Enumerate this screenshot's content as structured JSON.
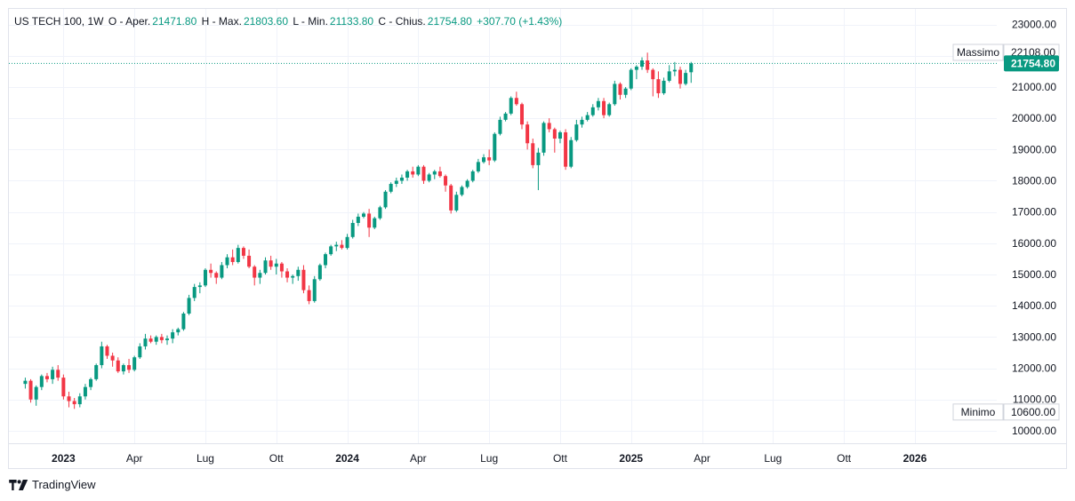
{
  "legend": {
    "symbol": "US TECH 100, 1W",
    "open_label": "O - Aper.",
    "open": "21471.80",
    "high_label": "H - Max.",
    "high": "21803.60",
    "low_label": "L - Min.",
    "low": "21133.80",
    "close_label": "C - Chius.",
    "close": "21754.80",
    "change": "+307.70 (+1.43%)"
  },
  "brand": {
    "name": "TradingView",
    "logo_icon": "tradingview-logo-icon"
  },
  "colors": {
    "up": "#089981",
    "down": "#f23645",
    "price_line": "#089981",
    "grid": "#f0f3fa"
  },
  "chart_data": {
    "type": "candlestick",
    "title": "US TECH 100, 1W",
    "y_ticks": [
      "23000.00",
      "22000.00",
      "21000.00",
      "20000.00",
      "19000.00",
      "18000.00",
      "17000.00",
      "16000.00",
      "15000.00",
      "14000.00",
      "13000.00",
      "12000.00",
      "11000.00",
      "10000.00"
    ],
    "x_ticks": [
      {
        "label": "2023",
        "week": 7,
        "bold": true
      },
      {
        "label": "Apr",
        "week": 20,
        "bold": false
      },
      {
        "label": "Lug",
        "week": 33,
        "bold": false
      },
      {
        "label": "Ott",
        "week": 46,
        "bold": false
      },
      {
        "label": "2024",
        "week": 59,
        "bold": true
      },
      {
        "label": "Apr",
        "week": 72,
        "bold": false
      },
      {
        "label": "Lug",
        "week": 85,
        "bold": false
      },
      {
        "label": "Ott",
        "week": 98,
        "bold": false
      },
      {
        "label": "2025",
        "week": 111,
        "bold": true
      },
      {
        "label": "Apr",
        "week": 124,
        "bold": false
      },
      {
        "label": "Lug",
        "week": 137,
        "bold": false
      },
      {
        "label": "Ott",
        "week": 150,
        "bold": false
      },
      {
        "label": "2026",
        "week": 163,
        "bold": true
      }
    ],
    "y_range": [
      9600,
      23500
    ],
    "x_range_weeks": [
      -3,
      178
    ],
    "ohlc": [
      [
        11500,
        11700,
        11350,
        11600
      ],
      [
        11600,
        11650,
        10900,
        11000
      ],
      [
        11000,
        11450,
        10800,
        11400
      ],
      [
        11400,
        11800,
        11300,
        11750
      ],
      [
        11750,
        11850,
        11550,
        11650
      ],
      [
        11650,
        12050,
        11500,
        11950
      ],
      [
        11950,
        12100,
        11600,
        11700
      ],
      [
        11700,
        11800,
        11000,
        11100
      ],
      [
        11100,
        11250,
        10750,
        10950
      ],
      [
        10950,
        11050,
        10700,
        10850
      ],
      [
        10850,
        11200,
        10750,
        11100
      ],
      [
        11100,
        11500,
        11000,
        11400
      ],
      [
        11400,
        11700,
        11300,
        11650
      ],
      [
        11650,
        12150,
        11600,
        12100
      ],
      [
        12100,
        12850,
        12000,
        12700
      ],
      [
        12700,
        12750,
        12300,
        12400
      ],
      [
        12400,
        12500,
        12050,
        12250
      ],
      [
        12250,
        12350,
        11850,
        11900
      ],
      [
        11900,
        12150,
        11800,
        12100
      ],
      [
        12100,
        12300,
        11850,
        11950
      ],
      [
        11950,
        12400,
        11900,
        12350
      ],
      [
        12350,
        12800,
        12300,
        12700
      ],
      [
        12700,
        13100,
        12600,
        12950
      ],
      [
        12950,
        13050,
        12800,
        12850
      ],
      [
        12850,
        13050,
        12750,
        13000
      ],
      [
        13000,
        13100,
        12800,
        12900
      ],
      [
        12900,
        13050,
        12750,
        12950
      ],
      [
        12950,
        13250,
        12800,
        13150
      ],
      [
        13150,
        13300,
        13050,
        13250
      ],
      [
        13250,
        13800,
        13200,
        13750
      ],
      [
        13750,
        14350,
        13700,
        14250
      ],
      [
        14250,
        14700,
        14150,
        14600
      ],
      [
        14600,
        14750,
        14400,
        14650
      ],
      [
        14650,
        15200,
        14600,
        15150
      ],
      [
        15150,
        15350,
        14900,
        15050
      ],
      [
        15050,
        15100,
        14700,
        14900
      ],
      [
        14900,
        15400,
        14850,
        15300
      ],
      [
        15300,
        15650,
        15200,
        15550
      ],
      [
        15550,
        15800,
        15300,
        15400
      ],
      [
        15400,
        15950,
        15350,
        15850
      ],
      [
        15850,
        15900,
        15500,
        15600
      ],
      [
        15600,
        15800,
        15200,
        15250
      ],
      [
        15250,
        15300,
        14650,
        14900
      ],
      [
        14900,
        15150,
        14700,
        15050
      ],
      [
        15050,
        15550,
        15000,
        15450
      ],
      [
        15450,
        15600,
        15150,
        15250
      ],
      [
        15250,
        15500,
        15000,
        15350
      ],
      [
        15350,
        15400,
        14900,
        15100
      ],
      [
        15100,
        15200,
        14750,
        14900
      ],
      [
        14900,
        15000,
        14700,
        14950
      ],
      [
        14950,
        15250,
        14800,
        15150
      ],
      [
        15150,
        15300,
        14400,
        14500
      ],
      [
        14500,
        14650,
        14050,
        14150
      ],
      [
        14150,
        14950,
        14100,
        14850
      ],
      [
        14850,
        15350,
        14800,
        15300
      ],
      [
        15300,
        15700,
        15200,
        15650
      ],
      [
        15650,
        15950,
        15600,
        15900
      ],
      [
        15900,
        16050,
        15750,
        15950
      ],
      [
        15950,
        16100,
        15800,
        15850
      ],
      [
        15850,
        16300,
        15800,
        16200
      ],
      [
        16200,
        16750,
        16150,
        16650
      ],
      [
        16650,
        16950,
        16550,
        16850
      ],
      [
        16850,
        17000,
        16800,
        16950
      ],
      [
        16950,
        17100,
        16200,
        16500
      ],
      [
        16500,
        16850,
        16450,
        16800
      ],
      [
        16800,
        17200,
        16750,
        17150
      ],
      [
        17150,
        17700,
        17100,
        17650
      ],
      [
        17650,
        17950,
        17600,
        17900
      ],
      [
        17900,
        18100,
        17800,
        18000
      ],
      [
        18000,
        18200,
        17900,
        18100
      ],
      [
        18100,
        18350,
        18000,
        18300
      ],
      [
        18300,
        18450,
        18100,
        18200
      ],
      [
        18200,
        18500,
        18150,
        18450
      ],
      [
        18450,
        18500,
        17900,
        18000
      ],
      [
        18000,
        18250,
        17950,
        18200
      ],
      [
        18200,
        18350,
        18050,
        18300
      ],
      [
        18300,
        18450,
        18100,
        18150
      ],
      [
        18150,
        18200,
        17650,
        17850
      ],
      [
        17850,
        17900,
        16950,
        17050
      ],
      [
        17050,
        17650,
        17000,
        17550
      ],
      [
        17550,
        17850,
        17500,
        17800
      ],
      [
        17800,
        18050,
        17750,
        18000
      ],
      [
        18000,
        18350,
        17950,
        18300
      ],
      [
        18300,
        18700,
        18250,
        18600
      ],
      [
        18600,
        18850,
        18550,
        18750
      ],
      [
        18750,
        19000,
        18500,
        18650
      ],
      [
        18650,
        19550,
        18600,
        19500
      ],
      [
        19500,
        20050,
        19450,
        19950
      ],
      [
        19950,
        20200,
        19900,
        20150
      ],
      [
        20150,
        20700,
        20100,
        20650
      ],
      [
        20650,
        20850,
        20400,
        20450
      ],
      [
        20450,
        20500,
        19650,
        19800
      ],
      [
        19800,
        19900,
        19000,
        19200
      ],
      [
        19200,
        19350,
        18400,
        18500
      ],
      [
        18500,
        19050,
        17700,
        18900
      ],
      [
        18900,
        19900,
        18800,
        19850
      ],
      [
        19850,
        20000,
        19550,
        19650
      ],
      [
        19650,
        19700,
        18900,
        19350
      ],
      [
        19350,
        19600,
        19200,
        19550
      ],
      [
        19550,
        19650,
        18350,
        18450
      ],
      [
        18450,
        19400,
        18400,
        19300
      ],
      [
        19300,
        19950,
        19250,
        19800
      ],
      [
        19800,
        20050,
        19700,
        19950
      ],
      [
        19950,
        20200,
        19900,
        20100
      ],
      [
        20100,
        20450,
        20050,
        20350
      ],
      [
        20350,
        20650,
        20250,
        20550
      ],
      [
        20550,
        20650,
        20000,
        20100
      ],
      [
        20100,
        20500,
        20050,
        20450
      ],
      [
        20450,
        21200,
        20400,
        21100
      ],
      [
        21100,
        21150,
        20600,
        20750
      ],
      [
        20750,
        21000,
        20650,
        20950
      ],
      [
        20950,
        21600,
        20900,
        21550
      ],
      [
        21550,
        21700,
        21250,
        21650
      ],
      [
        21650,
        21950,
        21550,
        21850
      ],
      [
        21850,
        22100,
        21450,
        21550
      ],
      [
        21550,
        21600,
        20700,
        21250
      ],
      [
        21250,
        21500,
        20650,
        20800
      ],
      [
        20800,
        21300,
        20750,
        21200
      ],
      [
        21200,
        21700,
        21150,
        21500
      ],
      [
        21500,
        21800,
        21350,
        21550
      ],
      [
        21550,
        21650,
        20950,
        21100
      ],
      [
        21100,
        21550,
        21050,
        21450
      ],
      [
        21471.8,
        21803.6,
        21133.8,
        21754.8
      ]
    ],
    "max_label": "Massimo",
    "max_value": "22108.00",
    "min_label": "Minimo",
    "min_value": "10600.00",
    "last_price": "21754.80"
  }
}
